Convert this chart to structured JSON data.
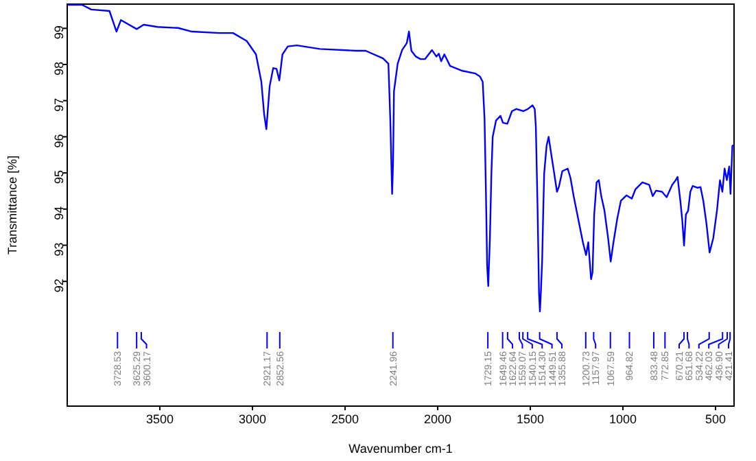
{
  "chart_data": {
    "type": "line",
    "xlabel": "Wavenumber cm-1",
    "ylabel": "Transmittance [%]",
    "xlim": [
      4000,
      400
    ],
    "xticks": [
      3500,
      3000,
      2500,
      2000,
      1500,
      1000,
      500
    ],
    "ylim": [
      88.55,
      99.67
    ],
    "yticks": [
      92,
      93,
      94,
      95,
      96,
      97,
      98,
      99
    ],
    "series": [
      {
        "color": "#0000ff",
        "x": [
          4000,
          3920,
          3870,
          3772,
          3734,
          3710,
          3625,
          3587,
          3513,
          3401,
          3327,
          3179,
          3105,
          3031,
          2981,
          2952,
          2937,
          2925,
          2907,
          2888,
          2870,
          2855,
          2838,
          2809,
          2760,
          2636,
          2439,
          2389,
          2295,
          2266,
          2256,
          2246,
          2241,
          2236,
          2216,
          2192,
          2167,
          2155,
          2142,
          2118,
          2093,
          2068,
          2031,
          2007,
          1994,
          1981,
          1964,
          1933,
          1871,
          1796,
          1772,
          1757,
          1747,
          1740,
          1733,
          1727,
          1718,
          1710,
          1703,
          1685,
          1661,
          1648,
          1624,
          1599,
          1575,
          1537,
          1513,
          1488,
          1476,
          1470,
          1461,
          1453,
          1448,
          1443,
          1436,
          1430,
          1425,
          1412,
          1401,
          1386,
          1371,
          1356,
          1346,
          1327,
          1298,
          1283,
          1266,
          1241,
          1216,
          1199,
          1187,
          1172,
          1164,
          1155,
          1142,
          1130,
          1117,
          1100,
          1080,
          1066,
          1051,
          1031,
          1011,
          981,
          952,
          932,
          895,
          858,
          839,
          821,
          789,
          764,
          734,
          715,
          705,
          690,
          680,
          670,
          660,
          648,
          636,
          623,
          598,
          581,
          566,
          549,
          532,
          512,
          492,
          476,
          463,
          451,
          439,
          426,
          419,
          409,
          400
        ],
        "values": [
          99.65,
          99.65,
          99.52,
          99.48,
          98.91,
          99.23,
          98.98,
          99.1,
          99.04,
          99.01,
          98.91,
          98.87,
          98.87,
          98.65,
          98.28,
          97.52,
          96.63,
          96.21,
          97.4,
          97.9,
          97.88,
          97.56,
          98.28,
          98.5,
          98.53,
          98.43,
          98.38,
          98.38,
          98.17,
          98.02,
          96.5,
          94.42,
          95.24,
          97.26,
          98.02,
          98.4,
          98.59,
          98.91,
          98.38,
          98.22,
          98.15,
          98.15,
          98.4,
          98.22,
          98.3,
          98.09,
          98.28,
          97.96,
          97.83,
          97.75,
          97.67,
          97.52,
          96.5,
          94.61,
          92.44,
          91.87,
          93.2,
          94.99,
          96.0,
          96.45,
          96.58,
          96.39,
          96.36,
          96.71,
          96.77,
          96.71,
          96.77,
          96.87,
          96.77,
          96.27,
          94.1,
          91.68,
          91.17,
          91.68,
          92.57,
          93.97,
          94.99,
          95.75,
          96.0,
          95.49,
          94.99,
          94.48,
          94.61,
          95.05,
          95.12,
          94.86,
          94.36,
          93.72,
          93.08,
          92.73,
          93.08,
          92.06,
          92.25,
          93.85,
          94.74,
          94.8,
          94.36,
          93.97,
          93.2,
          92.55,
          93.08,
          93.72,
          94.23,
          94.38,
          94.29,
          94.55,
          94.74,
          94.67,
          94.36,
          94.51,
          94.48,
          94.33,
          94.67,
          94.8,
          94.89,
          94.23,
          93.72,
          92.99,
          93.85,
          93.95,
          94.48,
          94.64,
          94.59,
          94.61,
          94.23,
          93.6,
          92.8,
          93.2,
          93.97,
          94.8,
          94.48,
          95.12,
          94.8,
          95.18,
          94.42,
          95.75,
          95.77
        ]
      }
    ],
    "annotations": [
      {
        "text": "3728.53",
        "x": 3728.53
      },
      {
        "text": "3625.29",
        "x": 3625.29
      },
      {
        "text": "3600.17",
        "x": 3600.17
      },
      {
        "text": "2921.17",
        "x": 2921.17
      },
      {
        "text": "2852.56",
        "x": 2852.56
      },
      {
        "text": "2241.96",
        "x": 2241.96
      },
      {
        "text": "1729.15",
        "x": 1729.15
      },
      {
        "text": "1649.46",
        "x": 1649.46
      },
      {
        "text": "1622.64",
        "x": 1622.64
      },
      {
        "text": "1559.07",
        "x": 1559.07
      },
      {
        "text": "1540.15",
        "x": 1540.15
      },
      {
        "text": "1514.30",
        "x": 1514.3
      },
      {
        "text": "1449.51",
        "x": 1449.51
      },
      {
        "text": "1355.88",
        "x": 1355.88
      },
      {
        "text": "1200.73",
        "x": 1200.73
      },
      {
        "text": "1157.97",
        "x": 1157.97
      },
      {
        "text": "1067.59",
        "x": 1067.59
      },
      {
        "text": "964.82",
        "x": 964.82
      },
      {
        "text": "833.48",
        "x": 833.48
      },
      {
        "text": "772.85",
        "x": 772.85
      },
      {
        "text": "670.21",
        "x": 670.21
      },
      {
        "text": "651.68",
        "x": 651.68
      },
      {
        "text": "534.22",
        "x": 534.22
      },
      {
        "text": "462.03",
        "x": 462.03
      },
      {
        "text": "436.90",
        "x": 436.9
      },
      {
        "text": "421.41",
        "x": 421.41
      }
    ]
  }
}
